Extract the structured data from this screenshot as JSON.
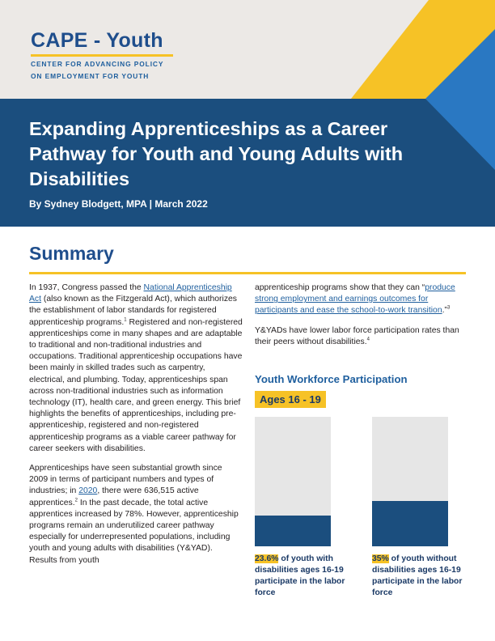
{
  "logo": {
    "title": "CAPE - Youth",
    "subtitle_line1": "CENTER FOR ADVANCING POLICY",
    "subtitle_line2": "ON EMPLOYMENT FOR YOUTH"
  },
  "header": {
    "title": "Expanding Apprenticeships as a Career Pathway for Youth and Young Adults with Disabilities",
    "byline": "By Sydney Blodgett, MPA | March 2022"
  },
  "colors": {
    "navy": "#1b4e7e",
    "brand_blue": "#1f4e8c",
    "accent_blue": "#2a78c2",
    "gold": "#f6c226",
    "light_gray": "#e6e6e6"
  },
  "summary": {
    "heading": "Summary",
    "p1": {
      "t1": "In 1937, Congress passed the ",
      "link1": "National Apprenticeship Act",
      "t2": " (also known as the Fitzgerald Act), which authorizes the establishment of  labor standards for registered apprenticeship programs.",
      "sup1": "1",
      "t3": " Registered and non-registered apprenticeships come in many shapes and are adaptable to traditional and non-traditional industries and occupations. Traditional apprenticeship occupations have been mainly in skilled trades such as carpentry, electrical, and plumbing. Today, apprenticeships span across non-traditional industries such as information technology (IT), health care, and green energy. This brief highlights the benefits of apprenticeships, including pre-apprenticeship, registered and non-registered apprenticeship programs as a viable career pathway for career seekers with disabilities."
    },
    "p2": {
      "t1": "Apprenticeships have seen substantial growth since 2009 in terms of participant numbers and types of industries; in ",
      "link1": "2020",
      "t2": ", there were 636,515 active apprentices.",
      "sup1": "2",
      "t3": " In the past decade, the total active apprentices increased by 78%. However, apprenticeship programs remain an underutilized career pathway especially for underrepresented populations, including youth and young adults with disabilities (Y&YAD). Results from youth"
    },
    "p3": {
      "t1": "apprenticeship programs show that they can “",
      "link1": "produce strong employment and earnings outcomes for participants and ease the school-to-work transition",
      "t2": ".”",
      "sup1": "3"
    },
    "p4": {
      "t1": "Y&YADs have lower labor force participation rates than their peers without disabilities.",
      "sup1": "4"
    }
  },
  "chart_data": {
    "type": "bar",
    "title": "Youth Workforce Participation",
    "subtitle": "Ages 16 - 19",
    "ylim": [
      0,
      100
    ],
    "series": [
      {
        "value": 23.6,
        "value_label": "23.6%",
        "caption": " of youth with disabilities ages 16-19 participate in the labor force"
      },
      {
        "value": 35,
        "value_label": "35%",
        "caption": " of youth without disabilities ages 16-19 participate in the labor force"
      }
    ]
  }
}
